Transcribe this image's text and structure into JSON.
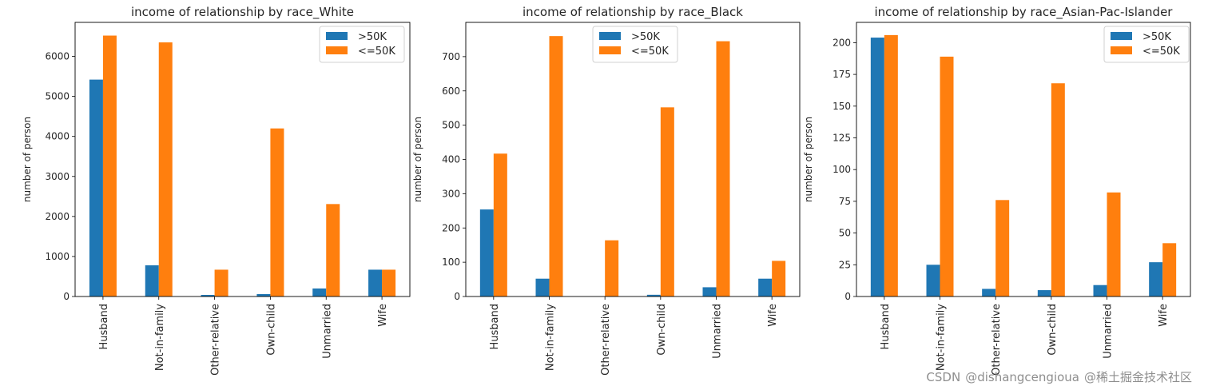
{
  "colors": {
    "above": "#1f77b4",
    "below": "#ff7f0e"
  },
  "chart_data": [
    {
      "type": "bar",
      "title": "income of relationship by race_White",
      "xlabel": "",
      "ylabel": "number of person",
      "categories": [
        "Husband",
        "Not-in-family",
        "Other-relative",
        "Own-child",
        "Unmarried",
        "Wife"
      ],
      "series": [
        {
          "name": ">50K",
          "values": [
            5420,
            780,
            40,
            60,
            200,
            670
          ]
        },
        {
          "name": "<=50K",
          "values": [
            6520,
            6350,
            670,
            4200,
            2310,
            670
          ]
        }
      ],
      "ylim": [
        0,
        6850
      ],
      "yticks": [
        0,
        1000,
        2000,
        3000,
        4000,
        5000,
        6000
      ],
      "legend": "top-right",
      "grid": false
    },
    {
      "type": "bar",
      "title": "income of relationship by race_Black",
      "xlabel": "",
      "ylabel": "number of person",
      "categories": [
        "Husband",
        "Not-in-family",
        "Other-relative",
        "Own-child",
        "Unmarried",
        "Wife"
      ],
      "series": [
        {
          "name": ">50K",
          "values": [
            254,
            52,
            0,
            5,
            27,
            52
          ]
        },
        {
          "name": "<=50K",
          "values": [
            417,
            760,
            164,
            552,
            745,
            104
          ]
        }
      ],
      "ylim": [
        0,
        800
      ],
      "yticks": [
        0,
        100,
        200,
        300,
        400,
        500,
        600,
        700
      ],
      "legend": "top-center",
      "grid": false
    },
    {
      "type": "bar",
      "title": "income of relationship by race_Asian-Pac-Islander",
      "xlabel": "",
      "ylabel": "number of person",
      "categories": [
        "Husband",
        "Not-in-family",
        "Other-relative",
        "Own-child",
        "Unmarried",
        "Wife"
      ],
      "series": [
        {
          "name": ">50K",
          "values": [
            204,
            25,
            6,
            5,
            9,
            27
          ]
        },
        {
          "name": "<=50K",
          "values": [
            206,
            189,
            76,
            168,
            82,
            42
          ]
        }
      ],
      "ylim": [
        0,
        216
      ],
      "yticks": [
        0,
        25,
        50,
        75,
        100,
        125,
        150,
        175,
        200
      ],
      "legend": "top-right",
      "grid": false
    }
  ],
  "watermark": {
    "source": "CSDN",
    "author": "@dishangcengioua",
    "overlay": "@稀土掘金技术社区"
  }
}
